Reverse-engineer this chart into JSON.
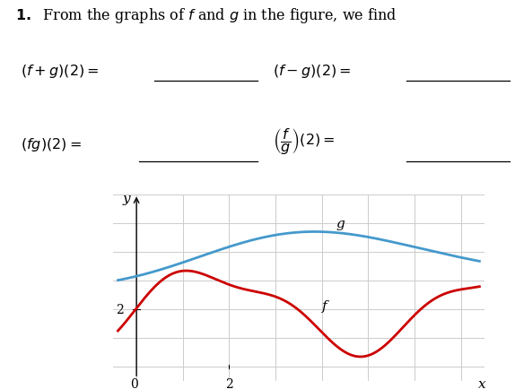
{
  "f_color": "#cc0000",
  "g_color": "#4499cc",
  "grid_color": "#cccccc",
  "bg_color": "#ffffff",
  "xlim": [
    -0.5,
    7.5
  ],
  "ylim": [
    -0.5,
    6.0
  ],
  "xlabel": "x",
  "ylabel": "y"
}
